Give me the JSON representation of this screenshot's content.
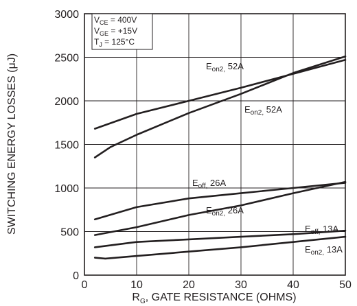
{
  "chart_data": {
    "type": "line",
    "title": "",
    "xlabel": {
      "prefix": "R",
      "sub": "G",
      "rest": ", GATE RESISTANCE (OHMS)"
    },
    "ylabel": "SWITCHING ENERGY LOSSES (μJ)",
    "xlim": [
      0,
      50
    ],
    "ylim": [
      0,
      3000
    ],
    "xticks": [
      0,
      10,
      20,
      30,
      40,
      50
    ],
    "yticks": [
      0,
      500,
      1000,
      1500,
      2000,
      2500,
      3000
    ],
    "grid": true,
    "conditions": [
      {
        "main": "V",
        "sub": "CE",
        "value": " =  400V"
      },
      {
        "main": "V",
        "sub": "GE",
        "value": " = +15V"
      },
      {
        "main": "T",
        "sub": "J",
        "value": " = 125°C"
      }
    ],
    "series": [
      {
        "name": "Eon2, 52A",
        "label_main": "E",
        "label_sub": "on2,",
        "label_rest": " 52A",
        "x": [
          2,
          10,
          20,
          30,
          40,
          50
        ],
        "y": [
          1680,
          1850,
          2000,
          2150,
          2310,
          2470
        ]
      },
      {
        "name": "Eon2, 52A",
        "label_main": "E",
        "label_sub": "on2,",
        "label_rest": " 52A",
        "x": [
          2,
          5,
          10,
          20,
          30,
          40,
          50
        ],
        "y": [
          1350,
          1470,
          1610,
          1860,
          2080,
          2320,
          2510
        ]
      },
      {
        "name": "Eoff, 26A",
        "label_main": "E",
        "label_sub": "off,",
        "label_rest": " 26A",
        "x": [
          2,
          10,
          20,
          30,
          40,
          50
        ],
        "y": [
          640,
          780,
          880,
          940,
          1000,
          1060
        ]
      },
      {
        "name": "Eon2, 26A",
        "label_main": "E",
        "label_sub": "on2,",
        "label_rest": " 26A",
        "x": [
          2,
          10,
          20,
          30,
          40,
          50
        ],
        "y": [
          460,
          550,
          690,
          800,
          940,
          1070
        ]
      },
      {
        "name": "Eoff, 13A",
        "label_main": "E",
        "label_sub": "off,",
        "label_rest": " 13A",
        "x": [
          2,
          10,
          20,
          30,
          40,
          50
        ],
        "y": [
          320,
          380,
          410,
          440,
          470,
          510
        ]
      },
      {
        "name": "Eon2, 13A",
        "label_main": "E",
        "label_sub": "on2,",
        "label_rest": " 13A",
        "x": [
          2,
          4,
          10,
          20,
          30,
          40,
          50
        ],
        "y": [
          200,
          190,
          220,
          270,
          320,
          380,
          440
        ]
      }
    ]
  }
}
